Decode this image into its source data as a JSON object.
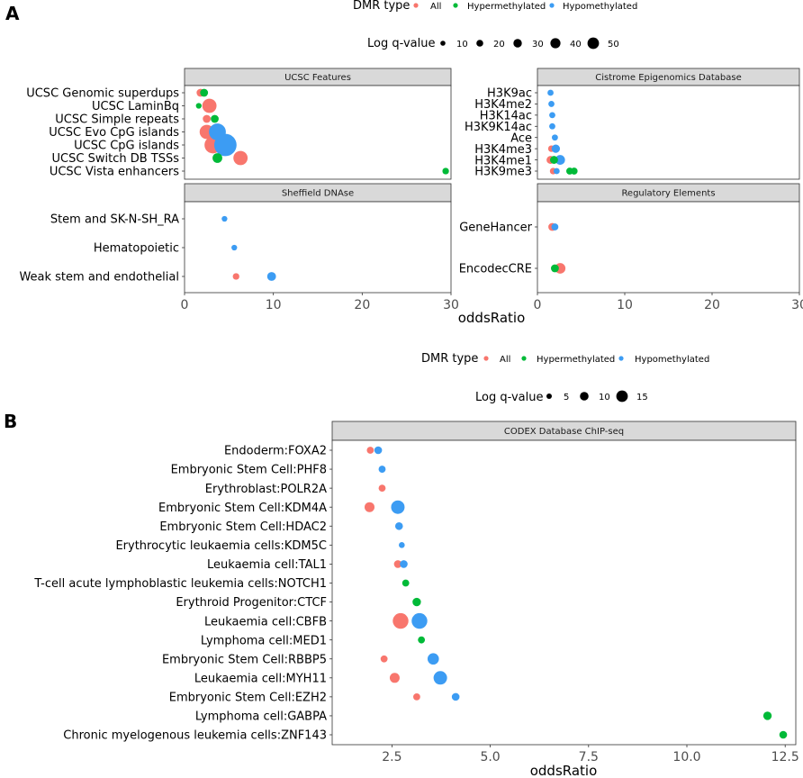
{
  "figure": {
    "panel_a_label": "A",
    "panel_b_label": "B",
    "colors": {
      "All": "#F8766D",
      "Hypermethylated": "#00BA38",
      "Hypomethylated": "#3C9CF3"
    }
  },
  "legend_a": {
    "dmr_title": "DMR type",
    "dmr_items": [
      "All",
      "Hypermethylated",
      "Hypomethylated"
    ],
    "size_title": "Log q-value",
    "size_items": [
      "10",
      "20",
      "30",
      "40",
      "50"
    ]
  },
  "legend_b": {
    "dmr_title": "DMR type",
    "dmr_items": [
      "All",
      "Hypermethylated",
      "Hypomethylated"
    ],
    "size_title": "Log q-value",
    "size_items": [
      "5",
      "10",
      "15"
    ]
  },
  "chart_data": [
    {
      "type": "scatter",
      "panel": "A",
      "facet": "UCSC Features",
      "xlabel": "oddsRatio",
      "xlim": [
        0,
        30
      ],
      "xticks": [
        "0",
        "10",
        "20",
        "30"
      ],
      "categories": [
        "UCSC Genomic superdups",
        "UCSC LaminBq",
        "UCSC Simple repeats",
        "UCSC Evo CpG islands",
        "UCSC CpG islands",
        "UCSC Switch DB TSSs",
        "UCSC Vista enhancers"
      ],
      "series": [
        {
          "name": "All",
          "points": [
            {
              "category": "UCSC Genomic superdups",
              "x": 1.8,
              "q": 8
            },
            {
              "category": "UCSC LaminBq",
              "x": 2.8,
              "q": 22
            },
            {
              "category": "UCSC Simple repeats",
              "x": 2.5,
              "q": 8
            },
            {
              "category": "UCSC Evo CpG islands",
              "x": 2.5,
              "q": 22
            },
            {
              "category": "UCSC CpG islands",
              "x": 3.2,
              "q": 28
            },
            {
              "category": "UCSC Switch DB TSSs",
              "x": 6.3,
              "q": 22
            }
          ]
        },
        {
          "name": "Hypermethylated",
          "points": [
            {
              "category": "UCSC Genomic superdups",
              "x": 2.2,
              "q": 8
            },
            {
              "category": "UCSC LaminBq",
              "x": 1.6,
              "q": 3
            },
            {
              "category": "UCSC Simple repeats",
              "x": 3.4,
              "q": 8
            },
            {
              "category": "UCSC Switch DB TSSs",
              "x": 3.7,
              "q": 12
            },
            {
              "category": "UCSC Vista enhancers",
              "x": 29.4,
              "q": 5
            }
          ]
        },
        {
          "name": "Hypomethylated",
          "points": [
            {
              "category": "UCSC Evo CpG islands",
              "x": 3.7,
              "q": 28
            },
            {
              "category": "UCSC CpG islands",
              "x": 4.6,
              "q": 40
            }
          ]
        }
      ]
    },
    {
      "type": "scatter",
      "panel": "A",
      "facet": "Cistrome Epigenomics Database",
      "xlabel": "oddsRatio",
      "xlim": [
        0,
        30
      ],
      "xticks": [
        "0",
        "10",
        "20",
        "30"
      ],
      "categories": [
        "H3K9ac",
        "H3K4me2",
        "H3K14ac",
        "H3K9K14ac",
        "Ace",
        "H3K4me3",
        "H3K4me1",
        "H3K9me3"
      ],
      "series": [
        {
          "name": "All",
          "points": [
            {
              "category": "H3K4me3",
              "x": 1.6,
              "q": 5
            },
            {
              "category": "H3K4me1",
              "x": 1.5,
              "q": 8
            },
            {
              "category": "H3K9me3",
              "x": 1.8,
              "q": 5
            }
          ]
        },
        {
          "name": "Hypermethylated",
          "points": [
            {
              "category": "H3K4me1",
              "x": 1.9,
              "q": 8
            },
            {
              "category": "H3K9me3",
              "x": 3.7,
              "q": 6
            },
            {
              "category": "H3K9me3",
              "x": 4.2,
              "q": 6
            }
          ]
        },
        {
          "name": "Hypomethylated",
          "points": [
            {
              "category": "H3K9ac",
              "x": 1.5,
              "q": 4
            },
            {
              "category": "H3K4me2",
              "x": 1.6,
              "q": 4
            },
            {
              "category": "H3K14ac",
              "x": 1.7,
              "q": 4
            },
            {
              "category": "H3K9K14ac",
              "x": 1.7,
              "q": 4
            },
            {
              "category": "Ace",
              "x": 2.0,
              "q": 4
            },
            {
              "category": "H3K4me3",
              "x": 2.1,
              "q": 9
            },
            {
              "category": "H3K4me1",
              "x": 2.6,
              "q": 12
            },
            {
              "category": "H3K9me3",
              "x": 2.2,
              "q": 4
            }
          ]
        }
      ]
    },
    {
      "type": "scatter",
      "panel": "A",
      "facet": "Sheffield DNAse",
      "xlabel": "oddsRatio",
      "xlim": [
        0,
        30
      ],
      "xticks": [
        "0",
        "10",
        "20",
        "30"
      ],
      "categories": [
        "Stem and SK-N-SH_RA",
        "Hematopoietic",
        "Weak stem and endothelial"
      ],
      "series": [
        {
          "name": "All",
          "points": [
            {
              "category": "Weak stem and endothelial",
              "x": 5.8,
              "q": 5
            }
          ]
        },
        {
          "name": "Hypermethylated",
          "points": []
        },
        {
          "name": "Hypomethylated",
          "points": [
            {
              "category": "Stem and SK-N-SH_RA",
              "x": 4.5,
              "q": 3
            },
            {
              "category": "Hematopoietic",
              "x": 5.6,
              "q": 3
            },
            {
              "category": "Weak stem and endothelial",
              "x": 9.8,
              "q": 10
            }
          ]
        }
      ]
    },
    {
      "type": "scatter",
      "panel": "A",
      "facet": "Regulatory Elements",
      "xlabel": "oddsRatio",
      "xlim": [
        0,
        30
      ],
      "xticks": [
        "0",
        "10",
        "20",
        "30"
      ],
      "categories": [
        "GeneHancer",
        "EncodecCRE"
      ],
      "series": [
        {
          "name": "All",
          "points": [
            {
              "category": "GeneHancer",
              "x": 1.7,
              "q": 8
            },
            {
              "category": "EncodecCRE",
              "x": 2.6,
              "q": 14
            }
          ]
        },
        {
          "name": "Hypermethylated",
          "points": [
            {
              "category": "EncodecCRE",
              "x": 2.0,
              "q": 8
            }
          ]
        },
        {
          "name": "Hypomethylated",
          "points": [
            {
              "category": "GeneHancer",
              "x": 2.0,
              "q": 6
            }
          ]
        }
      ]
    },
    {
      "type": "scatter",
      "panel": "B",
      "facet": "CODEX Database ChIP-seq",
      "xlabel": "oddsRatio",
      "xlim": [
        0.98,
        12.77
      ],
      "xticks": [
        "2.5",
        "5.0",
        "7.5",
        "10.0",
        "12.5"
      ],
      "categories": [
        "Endoderm:FOXA2",
        "Embryonic Stem Cell:PHF8",
        "Erythroblast:POLR2A",
        "Embryonic Stem Cell:KDM4A",
        "Embryonic Stem Cell:HDAC2",
        "Erythrocytic leukaemia cells:KDM5C",
        "Leukaemia cell:TAL1",
        "T-cell acute lymphoblastic leukemia cells:NOTCH1",
        "Erythroid Progenitor:CTCF",
        "Leukaemia cell:CBFB",
        "Lymphoma cell:MED1",
        "Embryonic Stem Cell:RBBP5",
        "Leukaemia cell:MYH11",
        "Embryonic Stem Cell:EZH2",
        "Lymphoma cell:GABPA",
        "Chronic myelogenous leukemia cells:ZNF143"
      ],
      "series": [
        {
          "name": "All",
          "points": [
            {
              "category": "Endoderm:FOXA2",
              "x": 1.95,
              "q": 4
            },
            {
              "category": "Erythroblast:POLR2A",
              "x": 2.25,
              "q": 4
            },
            {
              "category": "Embryonic Stem Cell:KDM4A",
              "x": 1.93,
              "q": 8
            },
            {
              "category": "Leukaemia cell:TAL1",
              "x": 2.65,
              "q": 5
            },
            {
              "category": "Leukaemia cell:CBFB",
              "x": 2.72,
              "q": 16
            },
            {
              "category": "Embryonic Stem Cell:RBBP5",
              "x": 2.3,
              "q": 4
            },
            {
              "category": "Leukaemia cell:MYH11",
              "x": 2.57,
              "q": 8
            },
            {
              "category": "Embryonic Stem Cell:EZH2",
              "x": 3.13,
              "q": 4
            }
          ]
        },
        {
          "name": "Hypermethylated",
          "points": [
            {
              "category": "T-cell acute lymphoblastic leukemia cells:NOTCH1",
              "x": 2.85,
              "q": 4
            },
            {
              "category": "Erythroid Progenitor:CTCF",
              "x": 3.13,
              "q": 6
            },
            {
              "category": "Lymphoma cell:MED1",
              "x": 3.25,
              "q": 4
            },
            {
              "category": "Lymphoma cell:GABPA",
              "x": 12.05,
              "q": 6
            },
            {
              "category": "Chronic myelogenous leukemia cells:ZNF143",
              "x": 12.45,
              "q": 5
            }
          ]
        },
        {
          "name": "Hypomethylated",
          "points": [
            {
              "category": "Endoderm:FOXA2",
              "x": 2.15,
              "q": 5
            },
            {
              "category": "Embryonic Stem Cell:PHF8",
              "x": 2.25,
              "q": 4
            },
            {
              "category": "Embryonic Stem Cell:KDM4A",
              "x": 2.65,
              "q": 13
            },
            {
              "category": "Embryonic Stem Cell:HDAC2",
              "x": 2.68,
              "q": 5
            },
            {
              "category": "Erythrocytic leukaemia cells:KDM5C",
              "x": 2.75,
              "q": 2.5
            },
            {
              "category": "Leukaemia cell:TAL1",
              "x": 2.8,
              "q": 5
            },
            {
              "category": "Leukaemia cell:CBFB",
              "x": 3.2,
              "q": 16
            },
            {
              "category": "Embryonic Stem Cell:RBBP5",
              "x": 3.55,
              "q": 10
            },
            {
              "category": "Leukaemia cell:MYH11",
              "x": 3.73,
              "q": 13
            },
            {
              "category": "Embryonic Stem Cell:EZH2",
              "x": 4.12,
              "q": 5
            }
          ]
        }
      ]
    }
  ]
}
